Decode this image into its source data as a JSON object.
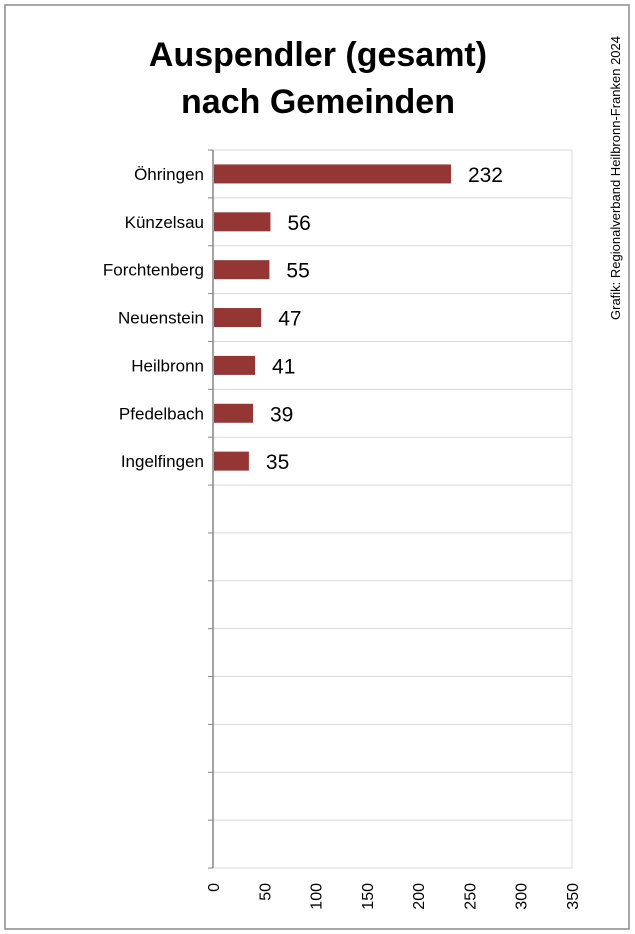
{
  "chart_data": {
    "type": "bar",
    "orientation": "horizontal",
    "title": [
      "Auspendler (gesamt)",
      "nach Gemeinden"
    ],
    "categories": [
      "Öhringen",
      "Künzelsau",
      "Forchtenberg",
      "Neuenstein",
      "Heilbronn",
      "Pfedelbach",
      "Ingelfingen"
    ],
    "values": [
      232,
      56,
      55,
      47,
      41,
      39,
      35
    ],
    "value_labels": [
      "232",
      "56",
      "55",
      "47",
      "41",
      "39",
      "35"
    ],
    "xlim": [
      0,
      350
    ],
    "x_ticks": [
      "0",
      "50",
      "100",
      "150",
      "200",
      "250",
      "300",
      "350"
    ],
    "grid": true,
    "bar_color": "#943634",
    "credit": "Grafik: Regionalverband Heilbronn-Franken 2024"
  }
}
